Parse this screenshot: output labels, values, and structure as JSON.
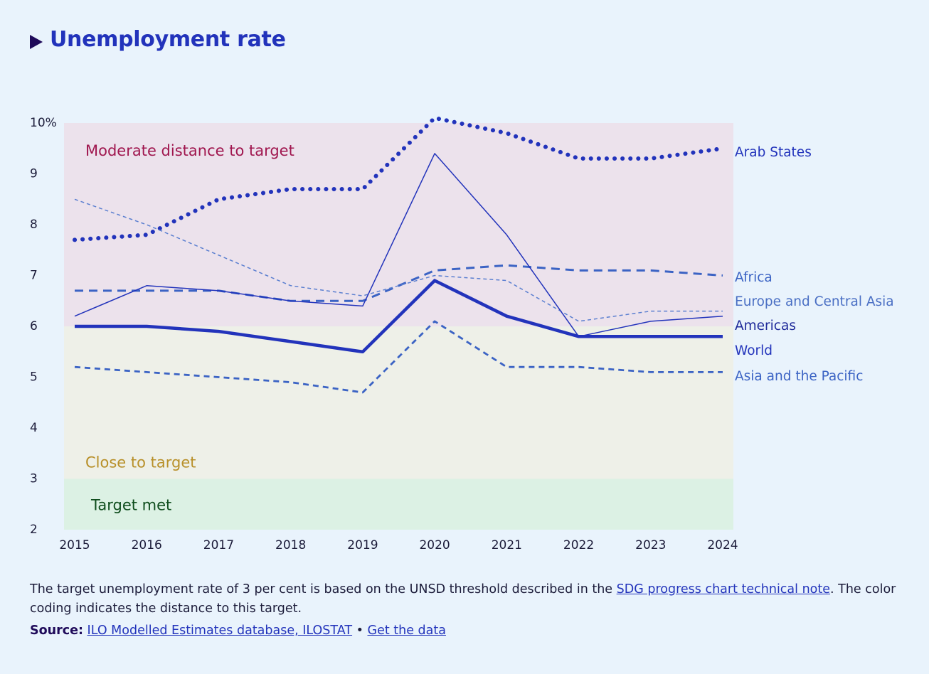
{
  "title": "Unemployment rate",
  "note": {
    "before": "The target unemployment rate of 3 per cent is based on the UNSD threshold described in the ",
    "link": "SDG progress chart technical note",
    "after": ". The color coding indicates the distance to this target."
  },
  "source": {
    "label": "Source:",
    "link1": "ILO Modelled Estimates database, ILOSTAT",
    "sep": " • ",
    "link2": "Get the data"
  },
  "chart_data": {
    "type": "line",
    "x": [
      2015,
      2016,
      2017,
      2018,
      2019,
      2020,
      2021,
      2022,
      2023,
      2024
    ],
    "ylim": [
      2,
      10
    ],
    "yticks": [
      "2",
      "3",
      "4",
      "5",
      "6",
      "7",
      "8",
      "9",
      "10%"
    ],
    "bands": [
      {
        "label": "Target met",
        "from": 2,
        "to": 3,
        "color": "#dcf1e4",
        "text_color": "#0f4d1d"
      },
      {
        "label": "Close to target",
        "from": 3,
        "to": 6,
        "color": "#eef0e8",
        "text_color": "#b8902a"
      },
      {
        "label": "Moderate distance to target",
        "from": 6,
        "to": 10,
        "color": "#ece2ec",
        "text_color": "#a0174f"
      }
    ],
    "series": [
      {
        "name": "Arab States",
        "style": "dotted",
        "color": "#2233bb",
        "label_color": "#2233bb",
        "values": [
          7.7,
          7.8,
          8.5,
          8.7,
          8.7,
          10.1,
          9.8,
          9.3,
          9.3,
          9.5
        ]
      },
      {
        "name": "Africa",
        "style": "dashed",
        "color": "#3b63c4",
        "label_color": "#3b63c4",
        "values": [
          6.7,
          6.7,
          6.7,
          6.5,
          6.5,
          7.1,
          7.2,
          7.1,
          7.1,
          7.0
        ]
      },
      {
        "name": "Europe and Central Asia",
        "style": "thin-dashed",
        "color": "#5b7fd0",
        "label_color": "#4a6fc4",
        "values": [
          8.5,
          8.0,
          7.4,
          6.8,
          6.6,
          7.0,
          6.9,
          6.1,
          6.3,
          6.3
        ]
      },
      {
        "name": "Americas",
        "style": "thin",
        "color": "#2233bb",
        "label_color": "#1f2a9a",
        "values": [
          6.2,
          6.8,
          6.7,
          6.5,
          6.4,
          9.4,
          7.8,
          5.8,
          6.1,
          6.2
        ]
      },
      {
        "name": "World",
        "style": "thick",
        "color": "#2233bb",
        "label_color": "#2233bb",
        "values": [
          6.0,
          6.0,
          5.9,
          5.7,
          5.5,
          6.9,
          6.2,
          5.8,
          5.8,
          5.8
        ]
      },
      {
        "name": "Asia and the Pacific",
        "style": "medium-dashed",
        "color": "#3b63c4",
        "label_color": "#3b63c4",
        "values": [
          5.2,
          5.1,
          5.0,
          4.9,
          4.7,
          6.1,
          5.2,
          5.2,
          5.1,
          5.1
        ]
      }
    ]
  }
}
